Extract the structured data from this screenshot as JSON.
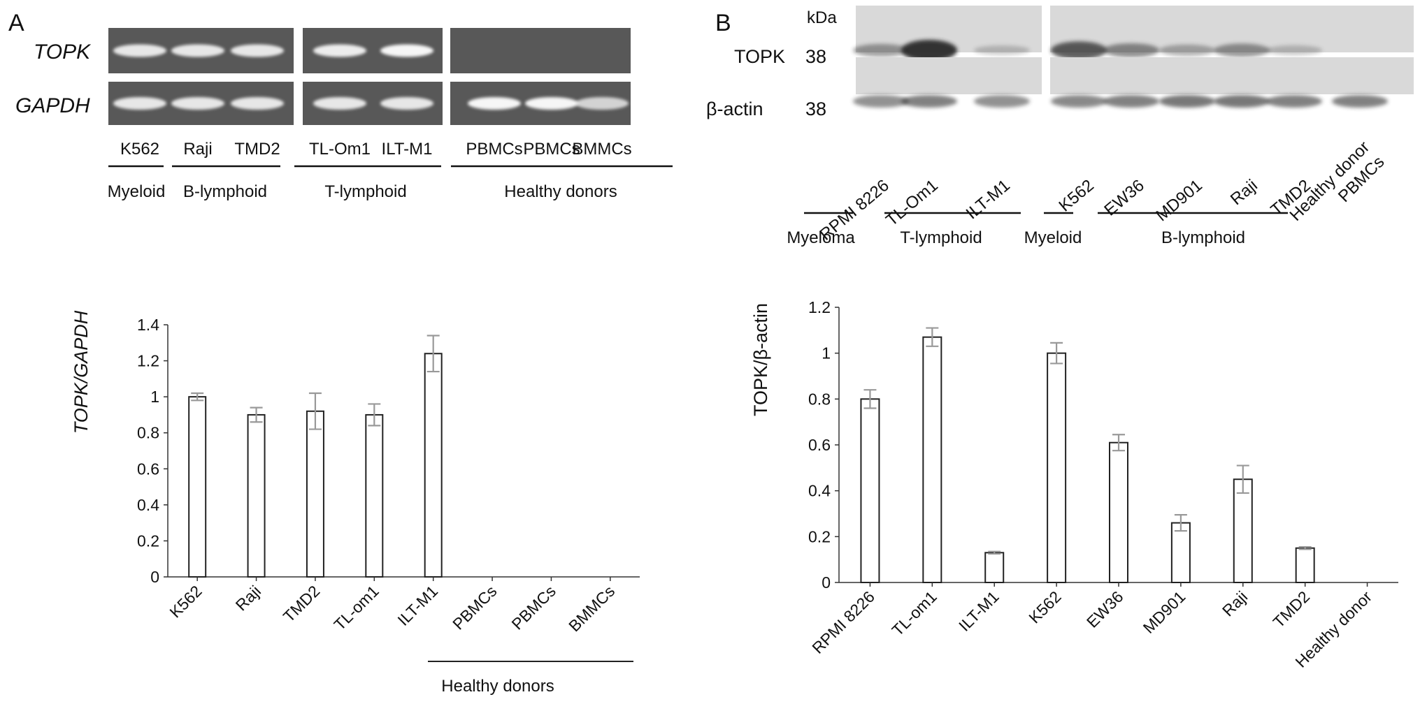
{
  "panel_a": {
    "panel_label": "A",
    "gel": {
      "row_labels": [
        "TOPK",
        "GAPDH"
      ],
      "lane_labels": [
        "K562",
        "Raji",
        "TMD2",
        "TL-Om1",
        "ILT-M1",
        "PBMCs",
        "PBMCs",
        "BMMCs"
      ],
      "group_labels": [
        "Myeloid",
        "B-lymphoid",
        "T-lymphoid",
        "Healthy donors"
      ],
      "topk_band_intensity": [
        0.85,
        0.85,
        0.85,
        0.9,
        1.0,
        0,
        0,
        0
      ],
      "gapdh_band_intensity": [
        0.85,
        0.85,
        0.85,
        0.85,
        0.85,
        1.0,
        1.0,
        0.65
      ]
    }
  },
  "panel_b": {
    "panel_label": "B",
    "blot": {
      "kda_label": "kDa",
      "row_labels": [
        "TOPK",
        "β-actin"
      ],
      "marker_labels": [
        "38",
        "38"
      ],
      "lane_labels": [
        "RPMI 8226",
        "TL-Om1",
        "ILT-M1",
        "K562",
        "EW36",
        "MD901",
        "Raji",
        "TMD2",
        "Healthy donor PBMCs"
      ],
      "group_labels": [
        "Myeloma",
        "T-lymphoid",
        "Myeloid",
        "B-lymphoid"
      ],
      "topk_band_intensity": [
        0.35,
        1.0,
        0.1,
        0.75,
        0.45,
        0.25,
        0.4,
        0.12,
        0
      ],
      "actin_band_intensity": [
        0.45,
        0.55,
        0.45,
        0.5,
        0.55,
        0.6,
        0.6,
        0.55,
        0.55
      ]
    }
  },
  "chart_data": [
    {
      "type": "bar",
      "title": "",
      "xlabel": "",
      "ylabel": "TOPK/GAPDH",
      "categories": [
        "K562",
        "Raji",
        "TMD2",
        "TL-om1",
        "ILT-M1",
        "PBMCs",
        "PBMCs",
        "BMMCs"
      ],
      "values": [
        1.0,
        0.9,
        0.92,
        0.9,
        1.24,
        0,
        0,
        0
      ],
      "errors": [
        0.02,
        0.04,
        0.1,
        0.06,
        0.1,
        0,
        0,
        0
      ],
      "ylim": [
        0,
        1.4
      ],
      "yticks": [
        "0",
        "0.2",
        "0.4",
        "0.6",
        "0.8",
        "1",
        "1.2",
        "1.4"
      ],
      "group_label": "Healthy donors",
      "grid": false,
      "bar_color": "#ffffff",
      "error_color": "#999999"
    },
    {
      "type": "bar",
      "title": "",
      "xlabel": "",
      "ylabel": "TOPK/β-actin",
      "categories": [
        "RPMI 8226",
        "TL-om1",
        "ILT-M1",
        "K562",
        "EW36",
        "MD901",
        "Raji",
        "TMD2",
        "Healthy donor"
      ],
      "values": [
        0.8,
        1.07,
        0.13,
        1.0,
        0.61,
        0.26,
        0.45,
        0.15,
        0
      ],
      "errors": [
        0.04,
        0.04,
        0.005,
        0.045,
        0.035,
        0.035,
        0.06,
        0.005,
        0
      ],
      "ylim": [
        0,
        1.2
      ],
      "yticks": [
        "0",
        "0.2",
        "0.4",
        "0.6",
        "0.8",
        "1",
        "1.2"
      ],
      "grid": false,
      "bar_color": "#ffffff",
      "error_color": "#999999"
    }
  ]
}
